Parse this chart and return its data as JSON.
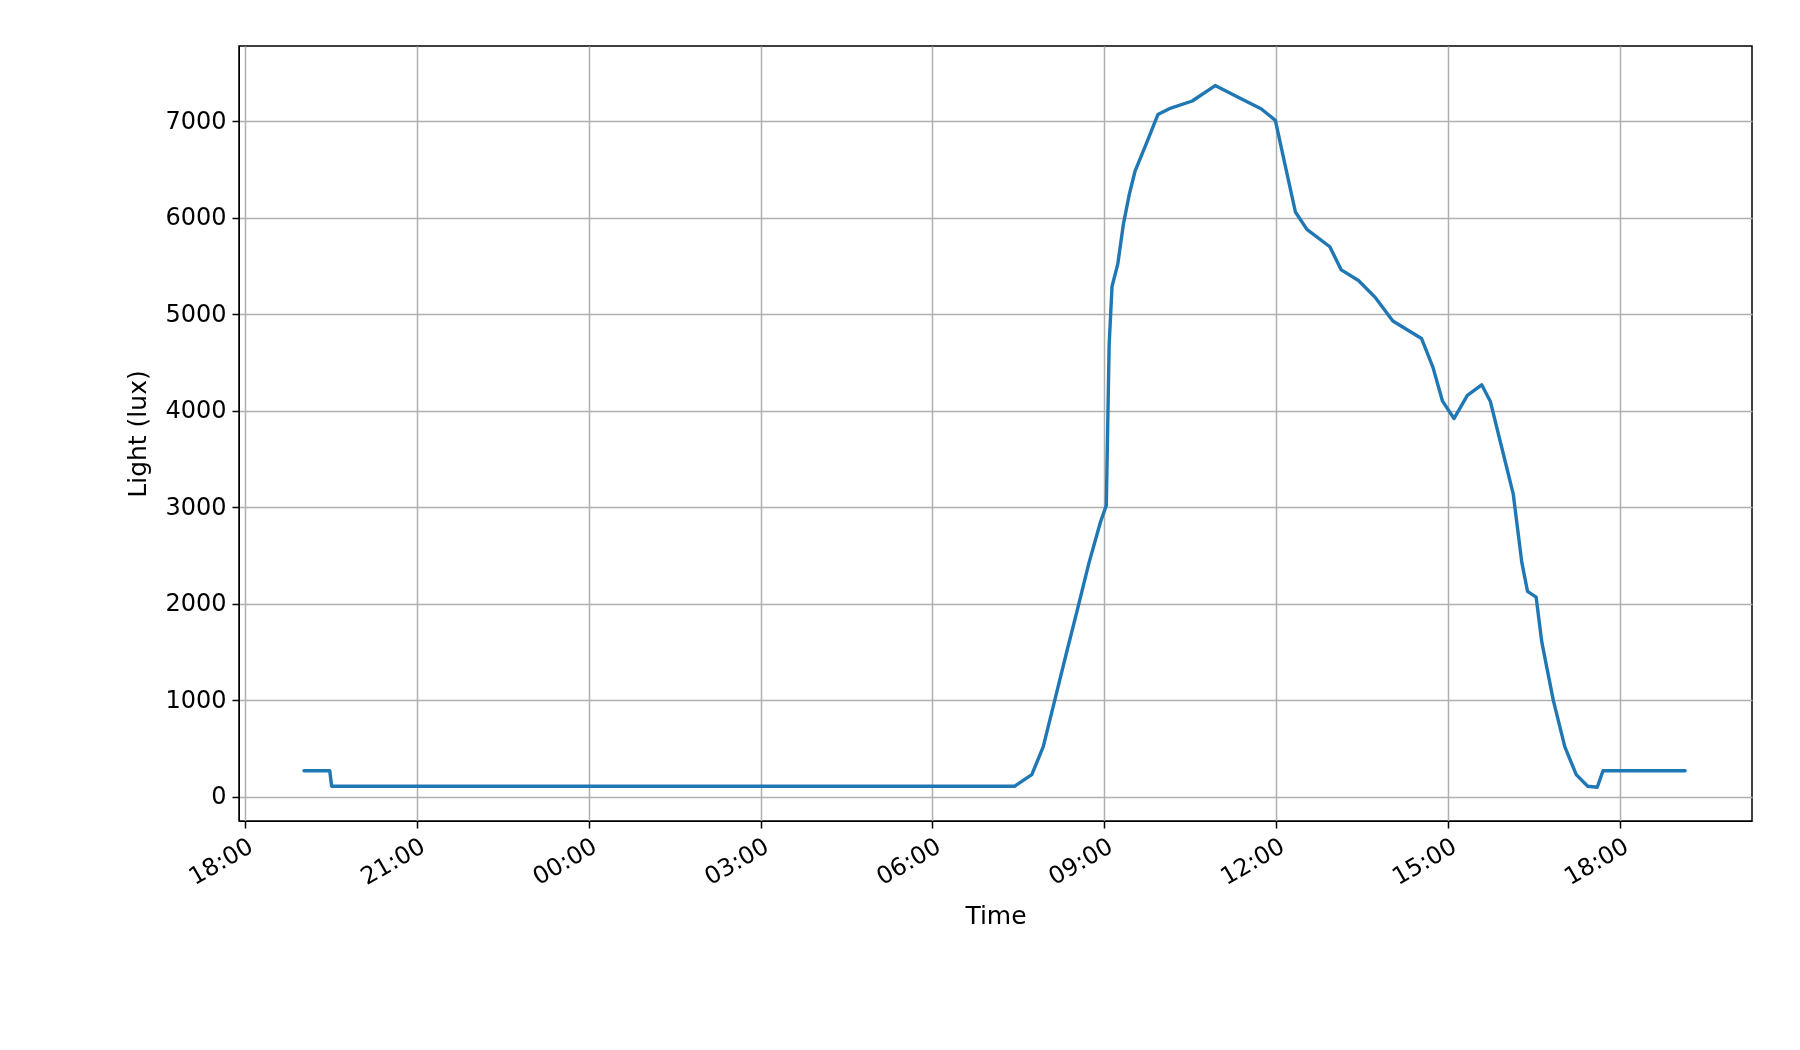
{
  "chart_data": {
    "type": "line",
    "xlabel": "Time",
    "ylabel": "Light (lux)",
    "xlim": [
      "--01-01T17:54",
      "--01-02T20:18"
    ],
    "ylim": [
      -250,
      7780
    ],
    "xticks": [
      {
        "value": "--01-01T18:00",
        "label": "18:00"
      },
      {
        "value": "--01-01T21:00",
        "label": "21:00"
      },
      {
        "value": "--01-02T00:00",
        "label": "00:00"
      },
      {
        "value": "--01-02T03:00",
        "label": "03:00"
      },
      {
        "value": "--01-02T06:00",
        "label": "06:00"
      },
      {
        "value": "--01-02T09:00",
        "label": "09:00"
      },
      {
        "value": "--01-02T12:00",
        "label": "12:00"
      },
      {
        "value": "--01-02T15:00",
        "label": "15:00"
      },
      {
        "value": "--01-02T18:00",
        "label": "18:00"
      }
    ],
    "yticks": [
      0,
      1000,
      2000,
      3000,
      4000,
      5000,
      6000,
      7000
    ],
    "grid": true,
    "marker": "none",
    "line_style": "solid",
    "x": [
      "--01-01T19:02",
      "--01-01T19:29",
      "--01-01T19:31",
      "--01-02T07:26",
      "--01-02T07:44",
      "--01-02T07:56",
      "--01-02T08:08",
      "--01-02T08:20",
      "--01-02T08:32",
      "--01-02T08:44",
      "--01-02T08:56",
      "--01-02T09:02",
      "--01-02T09:05",
      "--01-02T09:08",
      "--01-02T09:14",
      "--01-02T09:20",
      "--01-02T09:26",
      "--01-02T09:32",
      "--01-02T09:44",
      "--01-02T09:56",
      "--01-02T10:08",
      "--01-02T10:32",
      "--01-02T10:56",
      "--01-02T11:20",
      "--01-02T11:44",
      "--01-02T11:59",
      "--01-02T12:08",
      "--01-02T12:20",
      "--01-02T12:32",
      "--01-02T12:56",
      "--01-02T13:08",
      "--01-02T13:26",
      "--01-02T13:44",
      "--01-02T14:02",
      "--01-02T14:32",
      "--01-02T14:44",
      "--01-02T14:54",
      "--01-02T15:06",
      "--01-02T15:20",
      "--01-02T15:35",
      "--01-02T15:44",
      "--01-02T15:56",
      "--01-02T16:08",
      "--01-02T16:17",
      "--01-02T16:23",
      "--01-02T16:32",
      "--01-02T16:38",
      "--01-02T16:50",
      "--01-02T17:02",
      "--01-02T17:14",
      "--01-02T17:26",
      "--01-02T17:36",
      "--01-02T17:42",
      "--01-02T17:44",
      "--01-02T19:08"
    ],
    "series": [
      {
        "color": "#1f77b4",
        "values": [
          270,
          270,
          110,
          110,
          230,
          520,
          1000,
          1480,
          1950,
          2430,
          2850,
          3020,
          4690,
          5290,
          5520,
          5940,
          6240,
          6480,
          6770,
          7070,
          7130,
          7210,
          7370,
          7250,
          7130,
          7010,
          6600,
          6060,
          5880,
          5700,
          5460,
          5350,
          5170,
          4930,
          4750,
          4450,
          4100,
          3920,
          4160,
          4270,
          4100,
          3620,
          3140,
          2430,
          2130,
          2070,
          1600,
          1000,
          520,
          230,
          110,
          100,
          270,
          270,
          270
        ]
      }
    ]
  }
}
